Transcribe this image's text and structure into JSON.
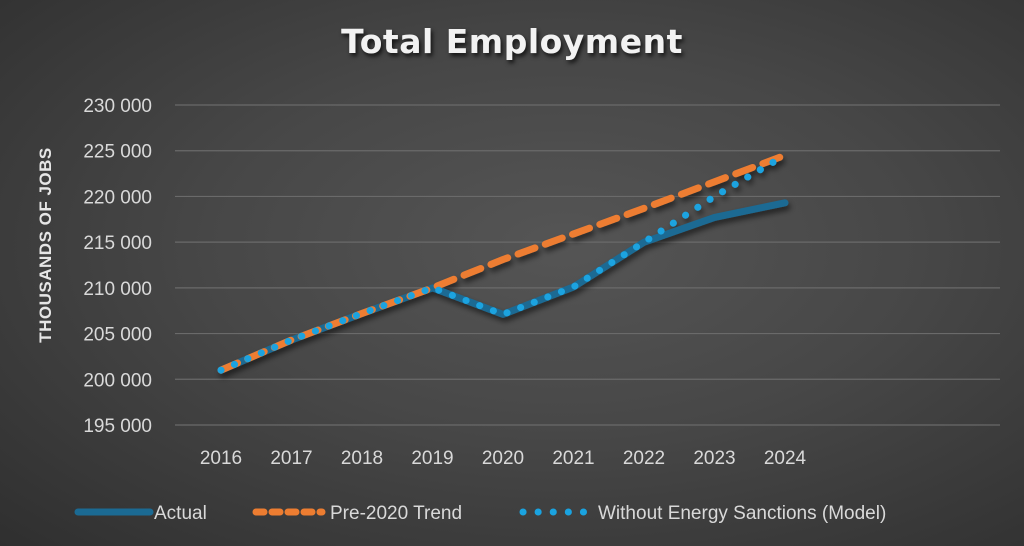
{
  "chart_data": {
    "type": "line",
    "title": "Total Employment",
    "xlabel": "",
    "ylabel": "THOUSANDS OF JOBS",
    "ylim": [
      195000,
      230000
    ],
    "yticks": [
      195000,
      200000,
      205000,
      210000,
      215000,
      220000,
      225000,
      230000
    ],
    "ytick_labels": [
      "195 000",
      "200 000",
      "205 000",
      "210 000",
      "215 000",
      "220 000",
      "225 000",
      "230 000"
    ],
    "categories": [
      "2016",
      "2017",
      "2018",
      "2019",
      "2020",
      "2021",
      "2022",
      "2023",
      "2024"
    ],
    "grid": "horizontal",
    "legend_position": "bottom",
    "series": [
      {
        "name": "Actual",
        "style": "solid",
        "color": "#1b6a93",
        "values": [
          201000,
          204300,
          207200,
          210000,
          207100,
          210100,
          215000,
          217700,
          219300
        ]
      },
      {
        "name": "Pre-2020 Trend",
        "style": "dashed",
        "color": "#ed7d31",
        "values": [
          201000,
          204300,
          207200,
          210000,
          213100,
          215900,
          218700,
          221600,
          224500
        ]
      },
      {
        "name": "Without Energy Sanctions (Model)",
        "style": "dotted",
        "color": "#1aa3e0",
        "values": [
          201000,
          204300,
          207200,
          210000,
          207100,
          210100,
          215000,
          220000,
          224500
        ]
      }
    ]
  }
}
